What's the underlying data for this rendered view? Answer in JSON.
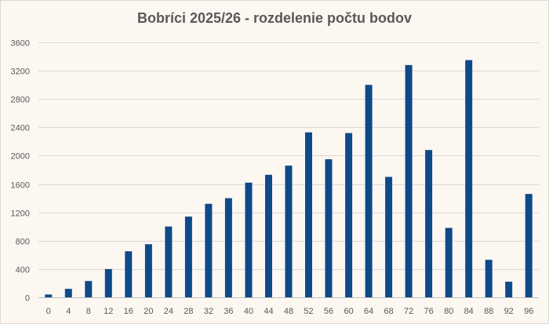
{
  "chart_data": {
    "type": "bar",
    "title": "Bobríci 2025/26 - rozdelenie počtu bodov",
    "xlabel": "",
    "ylabel": "",
    "categories": [
      "0",
      "4",
      "8",
      "12",
      "16",
      "20",
      "24",
      "28",
      "32",
      "36",
      "40",
      "44",
      "48",
      "52",
      "56",
      "60",
      "64",
      "68",
      "72",
      "76",
      "80",
      "84",
      "88",
      "92",
      "96"
    ],
    "values": [
      40,
      120,
      230,
      400,
      650,
      750,
      1000,
      1140,
      1320,
      1400,
      1620,
      1730,
      1860,
      2330,
      1950,
      2320,
      3000,
      1700,
      3280,
      2080,
      980,
      3350,
      530,
      220,
      1460
    ],
    "ylim": [
      0,
      3600
    ],
    "yticks": [
      0,
      400,
      800,
      1200,
      1600,
      2000,
      2400,
      2800,
      3200,
      3600
    ],
    "grid": true,
    "legend": "none",
    "bar_color": "#0e4a8a"
  }
}
